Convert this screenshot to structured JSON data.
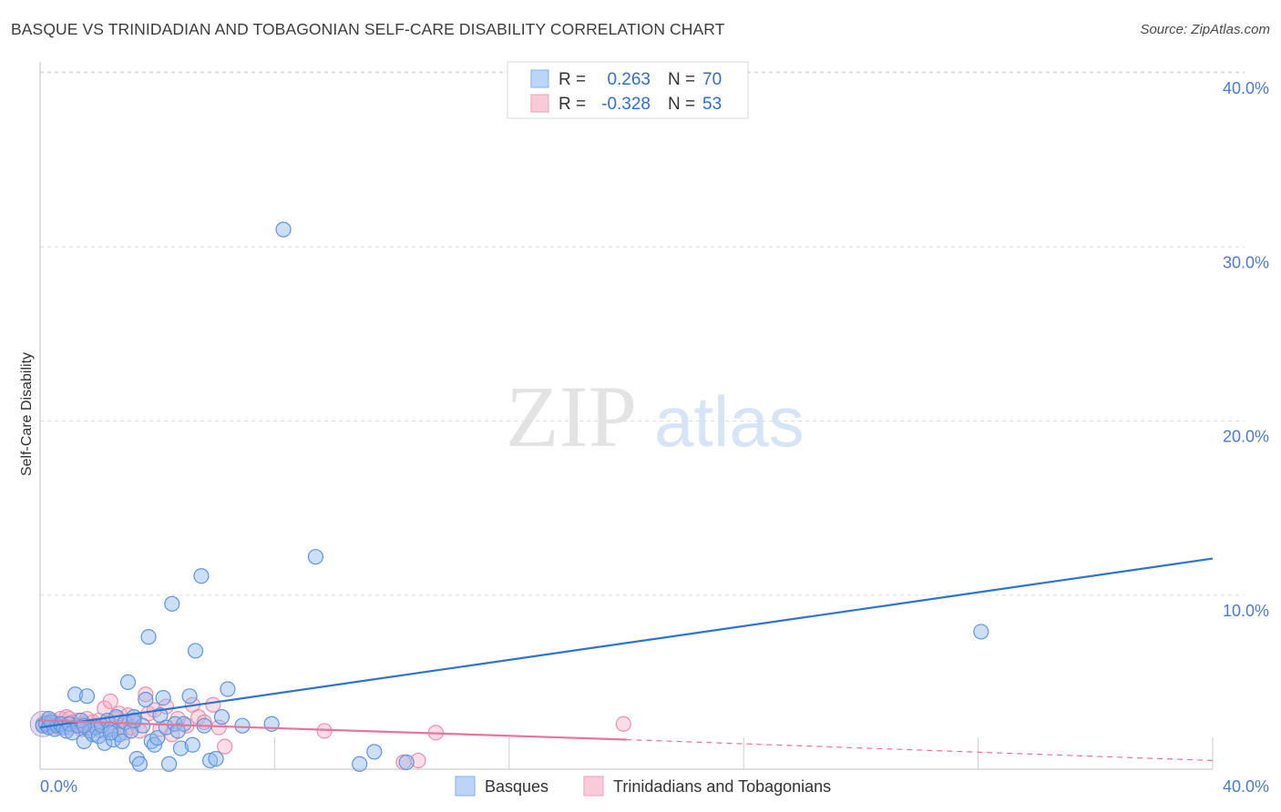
{
  "title": "BASQUE VS TRINIDADIAN AND TOBAGONIAN SELF-CARE DISABILITY CORRELATION CHART",
  "source": "Source: ZipAtlas.com",
  "watermark": {
    "zip": "ZIP",
    "atlas": "atlas"
  },
  "legend": {
    "rows": [
      {
        "r_label": "R =",
        "r_value": "0.263",
        "n_label": "N =",
        "n_value": "70",
        "color": "#8fb8ee"
      },
      {
        "r_label": "R =",
        "r_value": "-0.328",
        "n_label": "N =",
        "n_value": "53",
        "color": "#f5a9c0"
      }
    ]
  },
  "chart_data": {
    "type": "scatter",
    "title": "BASQUE VS TRINIDADIAN AND TOBAGONIAN SELF-CARE DISABILITY CORRELATION CHART",
    "xlabel": "",
    "ylabel": "Self-Care Disability",
    "xlim": [
      0,
      40
    ],
    "ylim": [
      0,
      40
    ],
    "x_ticks": [
      "0.0%",
      "40.0%"
    ],
    "y_ticks": [
      {
        "value": 10,
        "label": "10.0%"
      },
      {
        "value": 20,
        "label": "20.0%"
      },
      {
        "value": 30,
        "label": "30.0%"
      },
      {
        "value": 40,
        "label": "40.0%"
      }
    ],
    "grid": true,
    "legend_position": "top-center",
    "series": [
      {
        "name": "Basques",
        "color": "#6fa3e8",
        "line_color": "#2e73d0",
        "r": 0.263,
        "n": 70,
        "trend": {
          "x0": 0,
          "y0": 2.4,
          "x1": 40,
          "y1": 12.1
        },
        "points": [
          [
            0.1,
            2.5
          ],
          [
            0.2,
            2.6
          ],
          [
            0.3,
            2.4
          ],
          [
            0.4,
            2.7
          ],
          [
            0.5,
            2.3
          ],
          [
            0.6,
            2.5
          ],
          [
            0.7,
            2.6
          ],
          [
            0.8,
            2.4
          ],
          [
            0.9,
            2.2
          ],
          [
            1.0,
            2.6
          ],
          [
            1.1,
            2.1
          ],
          [
            1.2,
            4.3
          ],
          [
            1.3,
            2.5
          ],
          [
            1.4,
            2.8
          ],
          [
            1.5,
            1.6
          ],
          [
            1.6,
            4.2
          ],
          [
            1.7,
            2.2
          ],
          [
            1.8,
            2.0
          ],
          [
            1.9,
            2.4
          ],
          [
            2.0,
            1.9
          ],
          [
            2.1,
            2.5
          ],
          [
            2.2,
            1.5
          ],
          [
            2.3,
            2.8
          ],
          [
            2.4,
            2.3
          ],
          [
            2.5,
            1.7
          ],
          [
            2.6,
            3.0
          ],
          [
            2.7,
            2.0
          ],
          [
            2.8,
            1.6
          ],
          [
            2.9,
            2.7
          ],
          [
            3.0,
            5.0
          ],
          [
            3.1,
            2.2
          ],
          [
            3.2,
            3.0
          ],
          [
            3.3,
            0.6
          ],
          [
            3.4,
            0.3
          ],
          [
            3.5,
            2.5
          ],
          [
            3.6,
            4.0
          ],
          [
            3.7,
            7.6
          ],
          [
            3.8,
            1.6
          ],
          [
            3.9,
            1.4
          ],
          [
            4.0,
            1.8
          ],
          [
            4.1,
            3.1
          ],
          [
            4.2,
            4.1
          ],
          [
            4.3,
            2.4
          ],
          [
            4.4,
            0.3
          ],
          [
            4.5,
            9.5
          ],
          [
            4.6,
            2.6
          ],
          [
            4.8,
            1.2
          ],
          [
            4.9,
            2.6
          ],
          [
            5.1,
            4.2
          ],
          [
            5.2,
            1.4
          ],
          [
            5.3,
            6.8
          ],
          [
            5.5,
            11.1
          ],
          [
            5.6,
            2.5
          ],
          [
            5.8,
            0.5
          ],
          [
            6.0,
            0.6
          ],
          [
            6.2,
            3.0
          ],
          [
            6.4,
            4.6
          ],
          [
            6.9,
            2.5
          ],
          [
            7.9,
            2.6
          ],
          [
            8.3,
            31.0
          ],
          [
            9.4,
            12.2
          ],
          [
            10.9,
            0.3
          ],
          [
            11.4,
            1.0
          ],
          [
            12.5,
            0.4
          ],
          [
            32.1,
            7.9
          ],
          [
            0.3,
            2.9
          ],
          [
            1.5,
            2.5
          ],
          [
            2.4,
            2.1
          ],
          [
            3.2,
            2.8
          ],
          [
            4.7,
            2.2
          ]
        ]
      },
      {
        "name": "Trinidadians and Tobagonians",
        "color": "#f29ab6",
        "line_color": "#e7749a",
        "r": -0.328,
        "n": 53,
        "trend": {
          "x0": 0,
          "y0": 2.8,
          "x1": 20,
          "y1": 1.7,
          "dashed_to_x": 40,
          "dashed_to_y": 0.5
        },
        "points": [
          [
            0.1,
            2.6
          ],
          [
            0.2,
            2.7
          ],
          [
            0.3,
            2.5
          ],
          [
            0.4,
            2.8
          ],
          [
            0.5,
            2.6
          ],
          [
            0.6,
            2.4
          ],
          [
            0.7,
            2.9
          ],
          [
            0.8,
            2.6
          ],
          [
            0.9,
            3.0
          ],
          [
            1.0,
            2.4
          ],
          [
            1.1,
            2.7
          ],
          [
            1.2,
            2.5
          ],
          [
            1.3,
            2.8
          ],
          [
            1.4,
            2.3
          ],
          [
            1.5,
            2.6
          ],
          [
            1.6,
            2.9
          ],
          [
            1.7,
            2.4
          ],
          [
            1.8,
            2.7
          ],
          [
            1.9,
            2.5
          ],
          [
            2.0,
            2.8
          ],
          [
            2.1,
            2.2
          ],
          [
            2.2,
            3.5
          ],
          [
            2.3,
            2.6
          ],
          [
            2.4,
            3.9
          ],
          [
            2.5,
            2.3
          ],
          [
            2.6,
            2.9
          ],
          [
            2.7,
            3.2
          ],
          [
            2.8,
            2.5
          ],
          [
            2.9,
            2.1
          ],
          [
            3.0,
            3.1
          ],
          [
            3.1,
            2.4
          ],
          [
            3.2,
            2.7
          ],
          [
            3.4,
            2.2
          ],
          [
            3.6,
            4.3
          ],
          [
            3.7,
            3.2
          ],
          [
            3.9,
            3.4
          ],
          [
            4.1,
            2.3
          ],
          [
            4.3,
            3.6
          ],
          [
            4.5,
            2.0
          ],
          [
            4.7,
            2.9
          ],
          [
            5.0,
            2.5
          ],
          [
            5.2,
            3.7
          ],
          [
            5.4,
            3.0
          ],
          [
            5.6,
            2.7
          ],
          [
            5.9,
            3.7
          ],
          [
            6.1,
            2.4
          ],
          [
            6.3,
            1.3
          ],
          [
            9.7,
            2.2
          ],
          [
            12.4,
            0.4
          ],
          [
            12.9,
            0.5
          ],
          [
            13.5,
            2.1
          ],
          [
            19.9,
            2.6
          ],
          [
            1.0,
            2.9
          ]
        ]
      }
    ]
  },
  "bottom_legend": [
    {
      "label": "Basques",
      "color": "#8fb8ee"
    },
    {
      "label": "Trinidadians and Tobagonians",
      "color": "#f5a9c0"
    }
  ]
}
